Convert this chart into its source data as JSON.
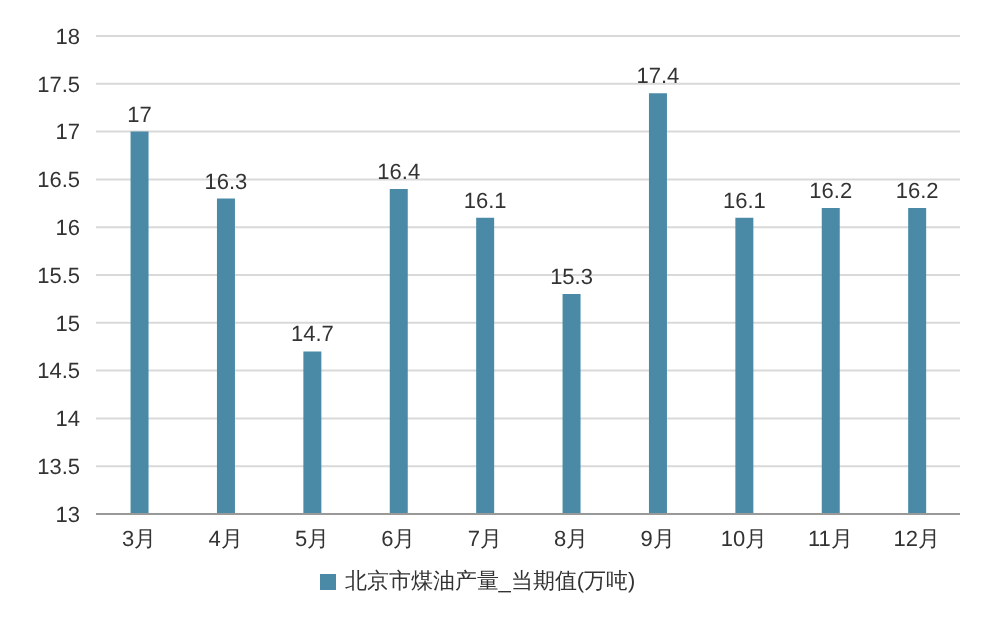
{
  "chart_data": {
    "type": "bar",
    "categories": [
      "3月",
      "4月",
      "5月",
      "6月",
      "7月",
      "8月",
      "9月",
      "10月",
      "11月",
      "12月"
    ],
    "series": [
      {
        "name": "北京市煤油产量_当期值(万吨)",
        "color": "#4a8aa6",
        "values": [
          17,
          16.3,
          14.7,
          16.4,
          16.1,
          15.3,
          17.4,
          16.1,
          16.2,
          16.2
        ]
      }
    ],
    "ylim": [
      13,
      18
    ],
    "yticks": [
      13,
      13.5,
      14,
      14.5,
      15,
      15.5,
      16,
      16.5,
      17,
      17.5,
      18
    ],
    "grid": "y",
    "legend": "bottom",
    "data_labels": true
  }
}
